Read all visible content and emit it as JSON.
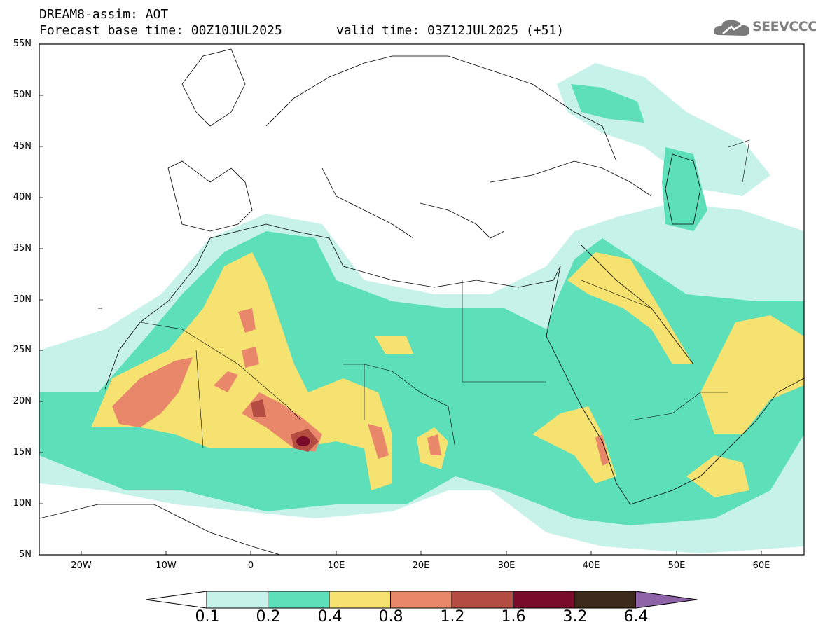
{
  "header": {
    "title": "DREAM8-assim: AOT",
    "base_time": "Forecast base time: 00Z10JUL2025",
    "valid_time": "valid time: 03Z12JUL2025 (+51)",
    "logo": "SEEVCCC"
  },
  "axes": {
    "lat_labels": [
      "55N",
      "50N",
      "45N",
      "40N",
      "35N",
      "30N",
      "25N",
      "20N",
      "15N",
      "10N",
      "5N"
    ],
    "lon_labels": [
      "20W",
      "10W",
      "0",
      "10E",
      "20E",
      "30E",
      "40E",
      "50E",
      "60E"
    ]
  },
  "colorbar": {
    "labels": [
      "0.1",
      "0.2",
      "0.4",
      "0.8",
      "1.2",
      "1.6",
      "3.2",
      "6.4"
    ],
    "colors": [
      "#c6f2ea",
      "#5ddfb9",
      "#f5e270",
      "#e8876a",
      "#b44c42",
      "#7a0b2a",
      "#3b2a1a",
      "#8e63a8"
    ]
  }
}
